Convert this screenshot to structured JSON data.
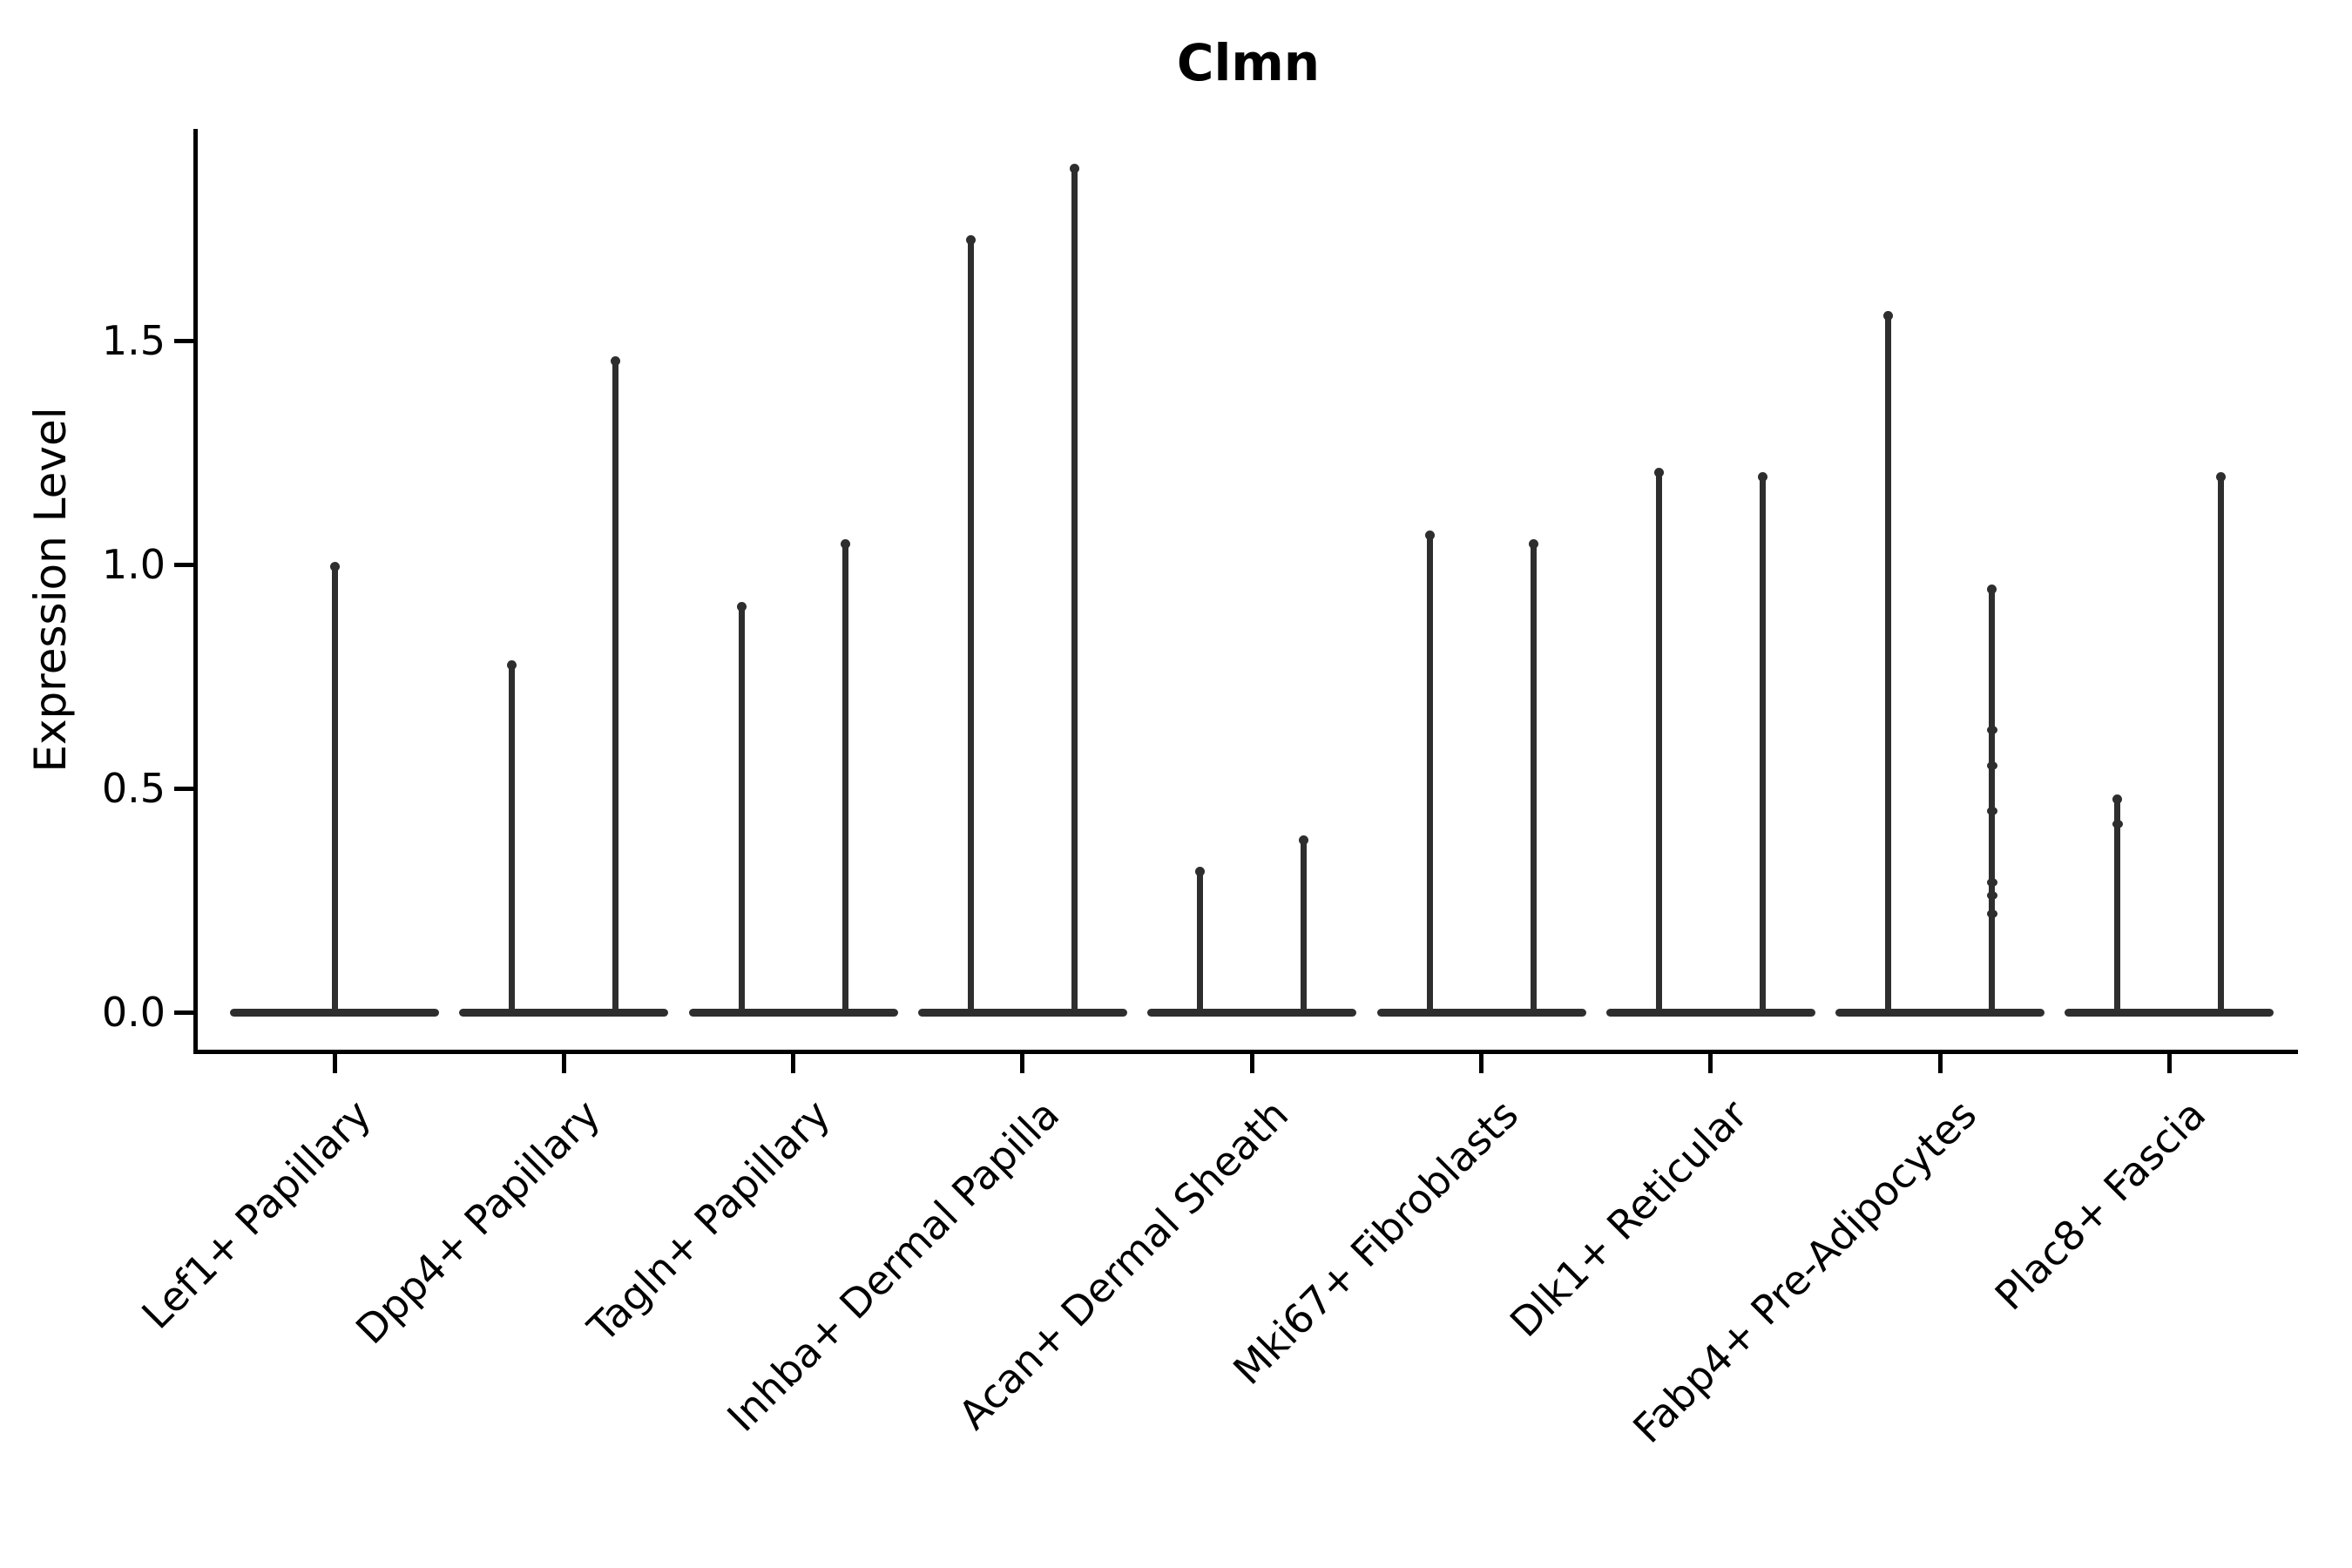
{
  "figure": {
    "title": "Clmn",
    "background": "#ffffff"
  },
  "colors": {
    "violin": "#2e2e2e",
    "axis": "#000000",
    "text": "#000000",
    "background": "#ffffff"
  },
  "chart_data": {
    "type": "violin",
    "title": "Clmn",
    "xlabel": "",
    "ylabel": "Expression Level",
    "ylim": [
      0,
      1.97
    ],
    "yticks": [
      "0.0",
      "0.5",
      "1.0",
      "1.5"
    ],
    "ytick_values": [
      0.0,
      0.5,
      1.0,
      1.5
    ],
    "grid": false,
    "legend": false,
    "x_tick_label_rotation": 45,
    "groups_per_category_note": "each category shows a wide density base at 0 and thin tail spike(s); all categories except the first show two side-by-side violins",
    "categories": [
      "Lef1+ Papillary",
      "Dpp4+ Papillary",
      "Tagln+ Papillary",
      "Inhba+ Dermal Papilla",
      "Acan+ Dermal Sheath",
      "Mki67+ Fibroblasts",
      "Dlk1+ Reticular",
      "Fabp4+ Pre-Adipocytes",
      "Plac8+ Fascia"
    ],
    "series": [
      {
        "category": "Lef1+ Papillary",
        "violins": [
          {
            "max": 1.0,
            "points": []
          }
        ]
      },
      {
        "category": "Dpp4+ Papillary",
        "violins": [
          {
            "max": 0.78,
            "points": []
          },
          {
            "max": 1.46,
            "points": []
          }
        ]
      },
      {
        "category": "Tagln+ Papillary",
        "violins": [
          {
            "max": 0.91,
            "points": []
          },
          {
            "max": 1.05,
            "points": []
          }
        ]
      },
      {
        "category": "Inhba+ Dermal Papilla",
        "violins": [
          {
            "max": 1.73,
            "points": []
          },
          {
            "max": 1.89,
            "points": []
          }
        ]
      },
      {
        "category": "Acan+ Dermal Sheath",
        "violins": [
          {
            "max": 0.32,
            "points": []
          },
          {
            "max": 0.39,
            "points": []
          }
        ]
      },
      {
        "category": "Mki67+ Fibroblasts",
        "violins": [
          {
            "max": 1.07,
            "points": []
          },
          {
            "max": 1.05,
            "points": []
          }
        ]
      },
      {
        "category": "Dlk1+ Reticular",
        "violins": [
          {
            "max": 1.21,
            "points": []
          },
          {
            "max": 1.2,
            "points": []
          }
        ]
      },
      {
        "category": "Fabp4+ Pre-Adipocytes",
        "violins": [
          {
            "max": 1.56,
            "points": []
          },
          {
            "max": 0.95,
            "points": [
              0.63,
              0.55,
              0.45,
              0.29,
              0.26,
              0.22
            ]
          }
        ]
      },
      {
        "category": "Plac8+ Fascia",
        "violins": [
          {
            "max": 0.48,
            "points": [
              0.42
            ]
          },
          {
            "max": 1.2,
            "points": []
          }
        ]
      }
    ]
  }
}
